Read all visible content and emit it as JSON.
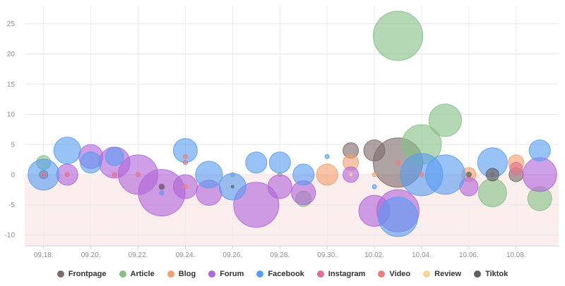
{
  "chart_data": {
    "type": "scatter",
    "variant": "bubble",
    "title": "",
    "xlabel": "",
    "ylabel": "",
    "x_tick_labels": [
      "09.18.",
      "09.20.",
      "09.22.",
      "09.24.",
      "09.26.",
      "09.28.",
      "09.30.",
      "10.02.",
      "10.04.",
      "10.06.",
      "10.08."
    ],
    "x_ticks": [
      0,
      2,
      4,
      6,
      8,
      10,
      12,
      14,
      16,
      18,
      20
    ],
    "xlim": [
      -0.8,
      21.8
    ],
    "y_ticks": [
      -10,
      -5,
      0,
      5,
      10,
      15,
      20,
      25
    ],
    "ylim": [
      -11.8,
      28
    ],
    "negative_band": true,
    "grid": "both",
    "legend_position": "bottom",
    "series": [
      {
        "name": "Frontpage",
        "color": "#7e6a6a",
        "points": [
          {
            "x": 0,
            "y": 0,
            "r": 6
          },
          {
            "x": 5,
            "y": -2,
            "r": 4
          },
          {
            "x": 13,
            "y": 4,
            "r": 11
          },
          {
            "x": 14,
            "y": 4,
            "r": 15
          },
          {
            "x": 15,
            "y": 2,
            "r": 35
          },
          {
            "x": 18,
            "y": 0,
            "r": 4
          },
          {
            "x": 20,
            "y": 0,
            "r": 10
          }
        ]
      },
      {
        "name": "Article",
        "color": "#86c086",
        "points": [
          {
            "x": 0,
            "y": 2,
            "r": 10
          },
          {
            "x": 8,
            "y": 0,
            "r": 3
          },
          {
            "x": 10,
            "y": 0,
            "r": 3
          },
          {
            "x": 11,
            "y": -4,
            "r": 11
          },
          {
            "x": 15,
            "y": 23,
            "r": 35
          },
          {
            "x": 16,
            "y": 5,
            "r": 28
          },
          {
            "x": 17,
            "y": 9,
            "r": 23
          },
          {
            "x": 19,
            "y": -3,
            "r": 20
          },
          {
            "x": 21,
            "y": -4,
            "r": 17
          }
        ]
      },
      {
        "name": "Blog",
        "color": "#f0a070",
        "points": [
          {
            "x": 12,
            "y": 0,
            "r": 15
          },
          {
            "x": 13,
            "y": 2,
            "r": 11
          },
          {
            "x": 14,
            "y": 0,
            "r": 3
          },
          {
            "x": 18,
            "y": 0,
            "r": 10
          },
          {
            "x": 20,
            "y": 2,
            "r": 11
          }
        ]
      },
      {
        "name": "Forum",
        "color": "#b266d9",
        "points": [
          {
            "x": 1,
            "y": 0,
            "r": 15
          },
          {
            "x": 2,
            "y": 3,
            "r": 17
          },
          {
            "x": 3,
            "y": 2,
            "r": 22
          },
          {
            "x": 4,
            "y": 0,
            "r": 28
          },
          {
            "x": 5,
            "y": -3,
            "r": 33
          },
          {
            "x": 6,
            "y": -2,
            "r": 17
          },
          {
            "x": 7,
            "y": -3,
            "r": 18
          },
          {
            "x": 9,
            "y": -5,
            "r": 32
          },
          {
            "x": 10,
            "y": -2,
            "r": 17
          },
          {
            "x": 11,
            "y": -3,
            "r": 17
          },
          {
            "x": 13,
            "y": 0,
            "r": 11
          },
          {
            "x": 14,
            "y": -6,
            "r": 22
          },
          {
            "x": 15,
            "y": -6,
            "r": 30
          },
          {
            "x": 18,
            "y": -2,
            "r": 13
          },
          {
            "x": 21,
            "y": 0,
            "r": 24
          }
        ]
      },
      {
        "name": "Facebook",
        "color": "#5b9cf0",
        "points": [
          {
            "x": 0,
            "y": 0,
            "r": 22
          },
          {
            "x": 1,
            "y": 4,
            "r": 19
          },
          {
            "x": 2,
            "y": 2,
            "r": 15
          },
          {
            "x": 3,
            "y": 3,
            "r": 13
          },
          {
            "x": 5,
            "y": -3,
            "r": 3
          },
          {
            "x": 6,
            "y": 4,
            "r": 17
          },
          {
            "x": 7,
            "y": 0,
            "r": 19
          },
          {
            "x": 8,
            "y": -2,
            "r": 19
          },
          {
            "x": 9,
            "y": 2,
            "r": 15
          },
          {
            "x": 10,
            "y": 2,
            "r": 15
          },
          {
            "x": 11,
            "y": 0,
            "r": 15
          },
          {
            "x": 12,
            "y": 3,
            "r": 3
          },
          {
            "x": 14,
            "y": -2,
            "r": 3
          },
          {
            "x": 15,
            "y": -7,
            "r": 28
          },
          {
            "x": 16,
            "y": 0,
            "r": 30
          },
          {
            "x": 17,
            "y": 0,
            "r": 28
          },
          {
            "x": 19,
            "y": 2,
            "r": 21
          },
          {
            "x": 21,
            "y": 4,
            "r": 15
          }
        ]
      },
      {
        "name": "Instagram",
        "color": "#e0708f",
        "points": [
          {
            "x": 0,
            "y": 0,
            "r": 3
          },
          {
            "x": 1,
            "y": 0,
            "r": 3
          },
          {
            "x": 3,
            "y": 0,
            "r": 3
          },
          {
            "x": 4,
            "y": 0,
            "r": 3
          },
          {
            "x": 6,
            "y": 2,
            "r": 3
          },
          {
            "x": 19,
            "y": 0,
            "r": 3
          },
          {
            "x": 20,
            "y": 1,
            "r": 9
          }
        ]
      },
      {
        "name": "Video",
        "color": "#e88080",
        "points": [
          {
            "x": 6,
            "y": 3,
            "r": 3
          },
          {
            "x": 6,
            "y": -2,
            "r": 3
          },
          {
            "x": 15,
            "y": 2,
            "r": 3
          },
          {
            "x": 16,
            "y": 0,
            "r": 3
          }
        ]
      },
      {
        "name": "Review",
        "color": "#f5d590",
        "points": [
          {
            "x": 13,
            "y": 0,
            "r": 2
          }
        ]
      },
      {
        "name": "Tiktok",
        "color": "#606060",
        "points": [
          {
            "x": 5,
            "y": -2,
            "r": 3
          },
          {
            "x": 8,
            "y": -2,
            "r": 2
          },
          {
            "x": 18,
            "y": 0,
            "r": 3
          },
          {
            "x": 19,
            "y": 0,
            "r": 9
          }
        ]
      }
    ]
  }
}
